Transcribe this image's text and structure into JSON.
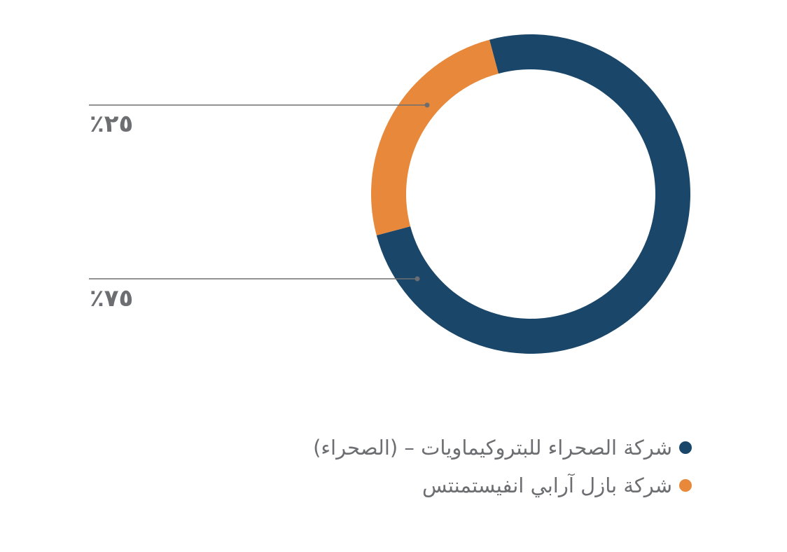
{
  "chart_data": {
    "type": "pie",
    "donut": true,
    "title": "",
    "slices": [
      {
        "name": "شركة الصحراء للبتروكيماويات – (الصحراء)",
        "value": 75,
        "label": "٪٧٥",
        "color": "#1a4769"
      },
      {
        "name": "شركة بازل آرابي انفيستمنتس",
        "value": 25,
        "label": "٪٢٥",
        "color": "#e8883a"
      }
    ],
    "legend_position": "bottom-right"
  },
  "colors": {
    "leader_line": "#6d6e71",
    "text": "#6d6e71"
  }
}
